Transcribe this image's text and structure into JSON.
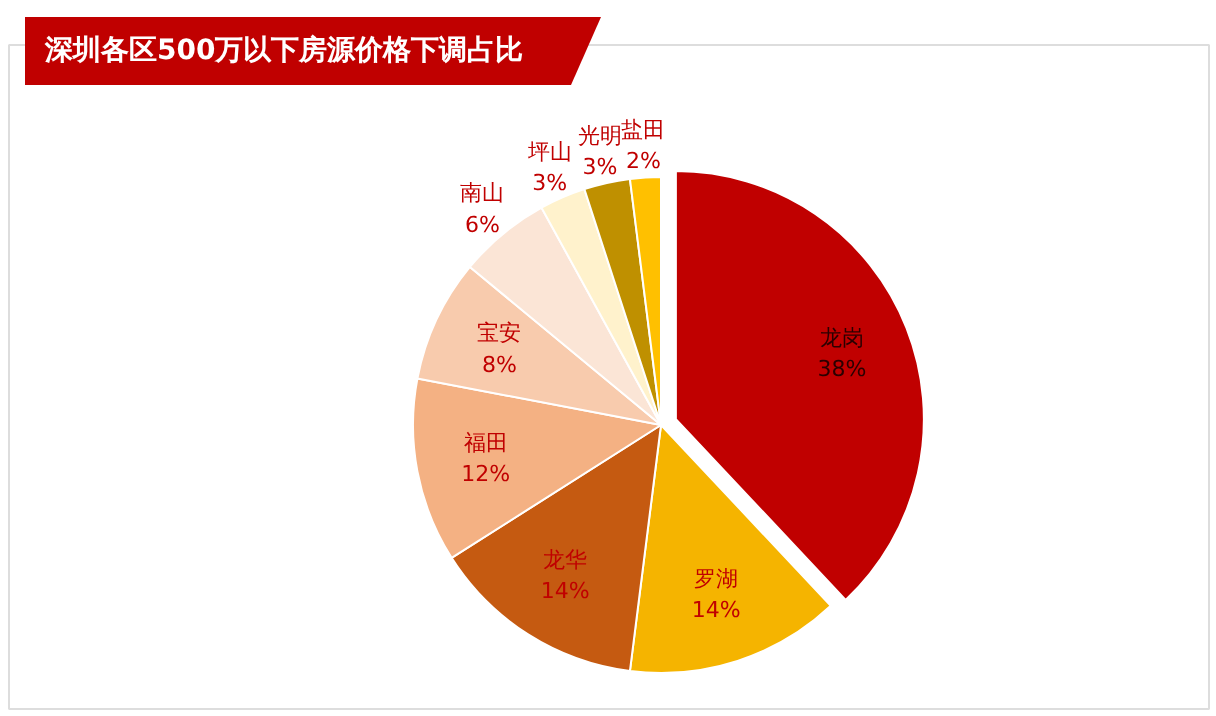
{
  "chart_data": {
    "type": "pie",
    "title": "深圳各区500万以下房源价格下调占比",
    "categories": [
      "龙岗",
      "罗湖",
      "龙华",
      "福田",
      "宝安",
      "南山",
      "坪山",
      "光明",
      "盐田"
    ],
    "values": [
      38,
      14,
      14,
      12,
      8,
      6,
      3,
      3,
      2
    ],
    "value_labels": [
      "38%",
      "14%",
      "14%",
      "12%",
      "8%",
      "6%",
      "3%",
      "3%",
      "2%"
    ],
    "colors": [
      "#c00000",
      "#f5b400",
      "#c55a11",
      "#f4b183",
      "#f8cbad",
      "#fbe5d6",
      "#fff2cc",
      "#bf9000",
      "#ffc000"
    ]
  }
}
